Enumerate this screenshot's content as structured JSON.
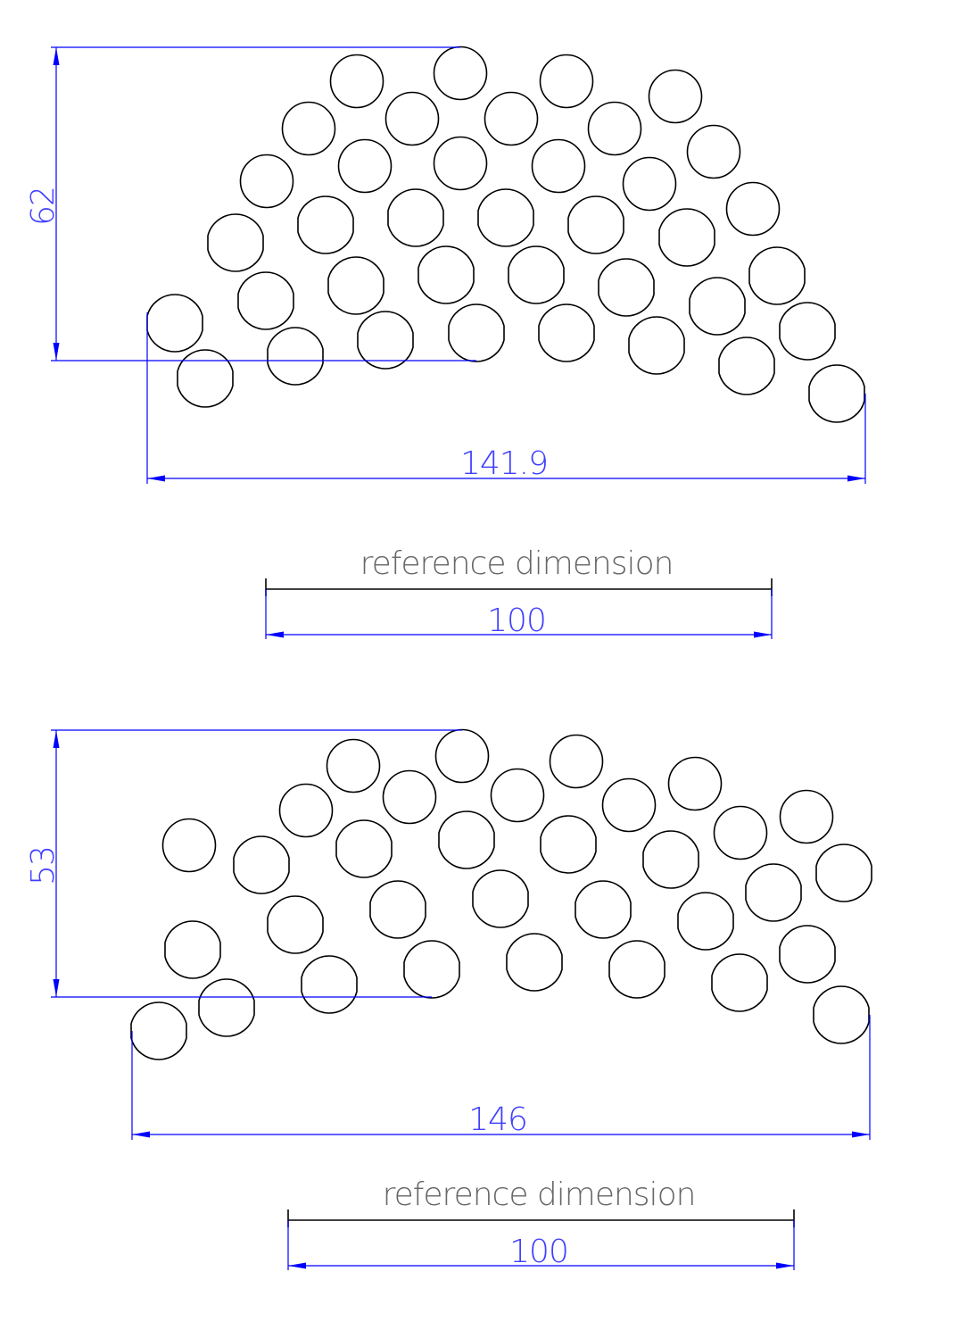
{
  "colors": {
    "dimension": "#0000ff",
    "outline": "#000000",
    "reference_text": "#666666"
  },
  "upper_pattern": {
    "height_dimension": "62",
    "width_dimension": "141.9",
    "reference_label": "reference dimension",
    "reference_value": "100"
  },
  "lower_pattern": {
    "height_dimension": "53",
    "width_dimension": "146",
    "reference_label": "reference dimension",
    "reference_value": "100"
  }
}
